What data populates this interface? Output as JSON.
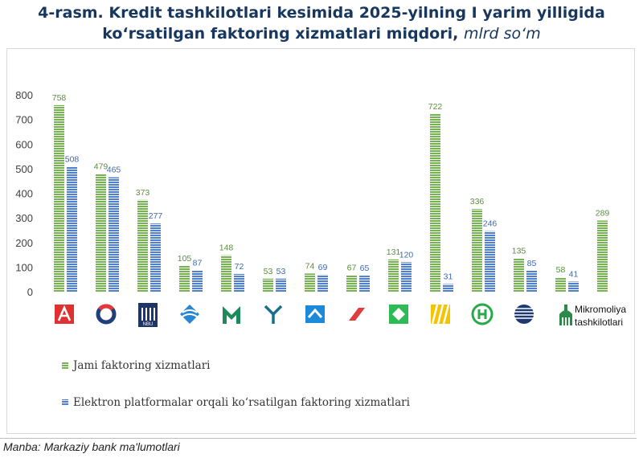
{
  "title": {
    "line1": "4-rasm. Kredit tashkilotlari kesimida 2025-yilning I yarim yilligida",
    "line2": "koʻrsatilgan faktoring xizmatlari miqdori,",
    "unit": "mlrd soʻm"
  },
  "source": "Manba: Markaziy bank ma'lumotlari",
  "colors": {
    "green": "#77b451",
    "blue": "#4f7fcf",
    "label_green": "#5a8f3c",
    "label_blue": "#3f69b0"
  },
  "chart_data": {
    "type": "bar",
    "ylim": [
      0,
      800
    ],
    "yticks": [
      0,
      100,
      200,
      300,
      400,
      500,
      600,
      700,
      800
    ],
    "grid": false,
    "legend_position": "bottom-left",
    "categories": [
      "bank-1",
      "bank-2",
      "bank-3",
      "bank-4",
      "bank-5",
      "bank-6",
      "bank-7",
      "bank-8",
      "bank-9",
      "bank-10",
      "bank-11",
      "bank-12",
      "bank-13",
      "Mikromoliya tashkilotlari"
    ],
    "last_category_label": [
      "Mikromoliya",
      "tashkilotlari"
    ],
    "series": [
      {
        "name": "Jami faktoring xizmatlari",
        "values": [
          758,
          479,
          373,
          105,
          148,
          53,
          74,
          67,
          131,
          722,
          336,
          135,
          58,
          289
        ]
      },
      {
        "name": "Elektron platformalar orqali koʻrsatilgan faktoring xizmatlari",
        "values": [
          508,
          465,
          277,
          87,
          72,
          53,
          69,
          65,
          120,
          31,
          246,
          85,
          41,
          null
        ]
      }
    ]
  }
}
